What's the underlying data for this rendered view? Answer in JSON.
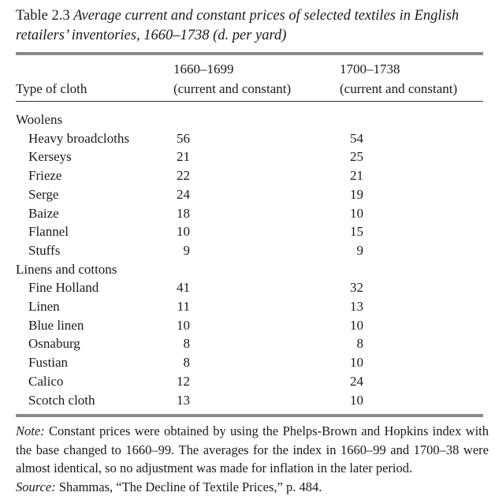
{
  "title": {
    "label": "Table 2.3",
    "caption": "Average current and constant prices of selected textiles in English retailers’ inventories, 1660–1738 (d. per yard)"
  },
  "columns": {
    "type": "Type of cloth",
    "period1": "1660–1699",
    "period1_sub": "(current and constant)",
    "period2": "1700–1738",
    "period2_sub": "(current and constant)"
  },
  "groups": [
    {
      "name": "Woolens",
      "rows": [
        {
          "cloth": "Heavy broadcloths",
          "p1": "56",
          "p2": "54"
        },
        {
          "cloth": "Kerseys",
          "p1": "21",
          "p2": "25"
        },
        {
          "cloth": "Frieze",
          "p1": "22",
          "p2": "21"
        },
        {
          "cloth": "Serge",
          "p1": "24",
          "p2": "19"
        },
        {
          "cloth": "Baize",
          "p1": "18",
          "p2": "10"
        },
        {
          "cloth": "Flannel",
          "p1": "10",
          "p2": "15"
        },
        {
          "cloth": "Stuffs",
          "p1": "9",
          "p2": "9"
        }
      ]
    },
    {
      "name": "Linens and cottons",
      "rows": [
        {
          "cloth": "Fine Holland",
          "p1": "41",
          "p2": "32"
        },
        {
          "cloth": "Linen",
          "p1": "11",
          "p2": "13"
        },
        {
          "cloth": "Blue linen",
          "p1": "10",
          "p2": "10"
        },
        {
          "cloth": "Osnaburg",
          "p1": "8",
          "p2": "8"
        },
        {
          "cloth": "Fustian",
          "p1": "8",
          "p2": "10"
        },
        {
          "cloth": "Calico",
          "p1": "12",
          "p2": "24"
        },
        {
          "cloth": "Scotch cloth",
          "p1": "13",
          "p2": "10"
        }
      ]
    }
  ],
  "note": {
    "label": "Note:",
    "text": " Constant prices were obtained by using the Phelps-Brown and Hopkins index with the base changed to 1660–99. The averages for the index in 1660–99 and 1700–38 were almost identical, so no adjustment was made for inflation in the later period."
  },
  "source": {
    "label": "Source:",
    "text": " Shammas, “The Decline of Textile Prices,” p. 484."
  }
}
